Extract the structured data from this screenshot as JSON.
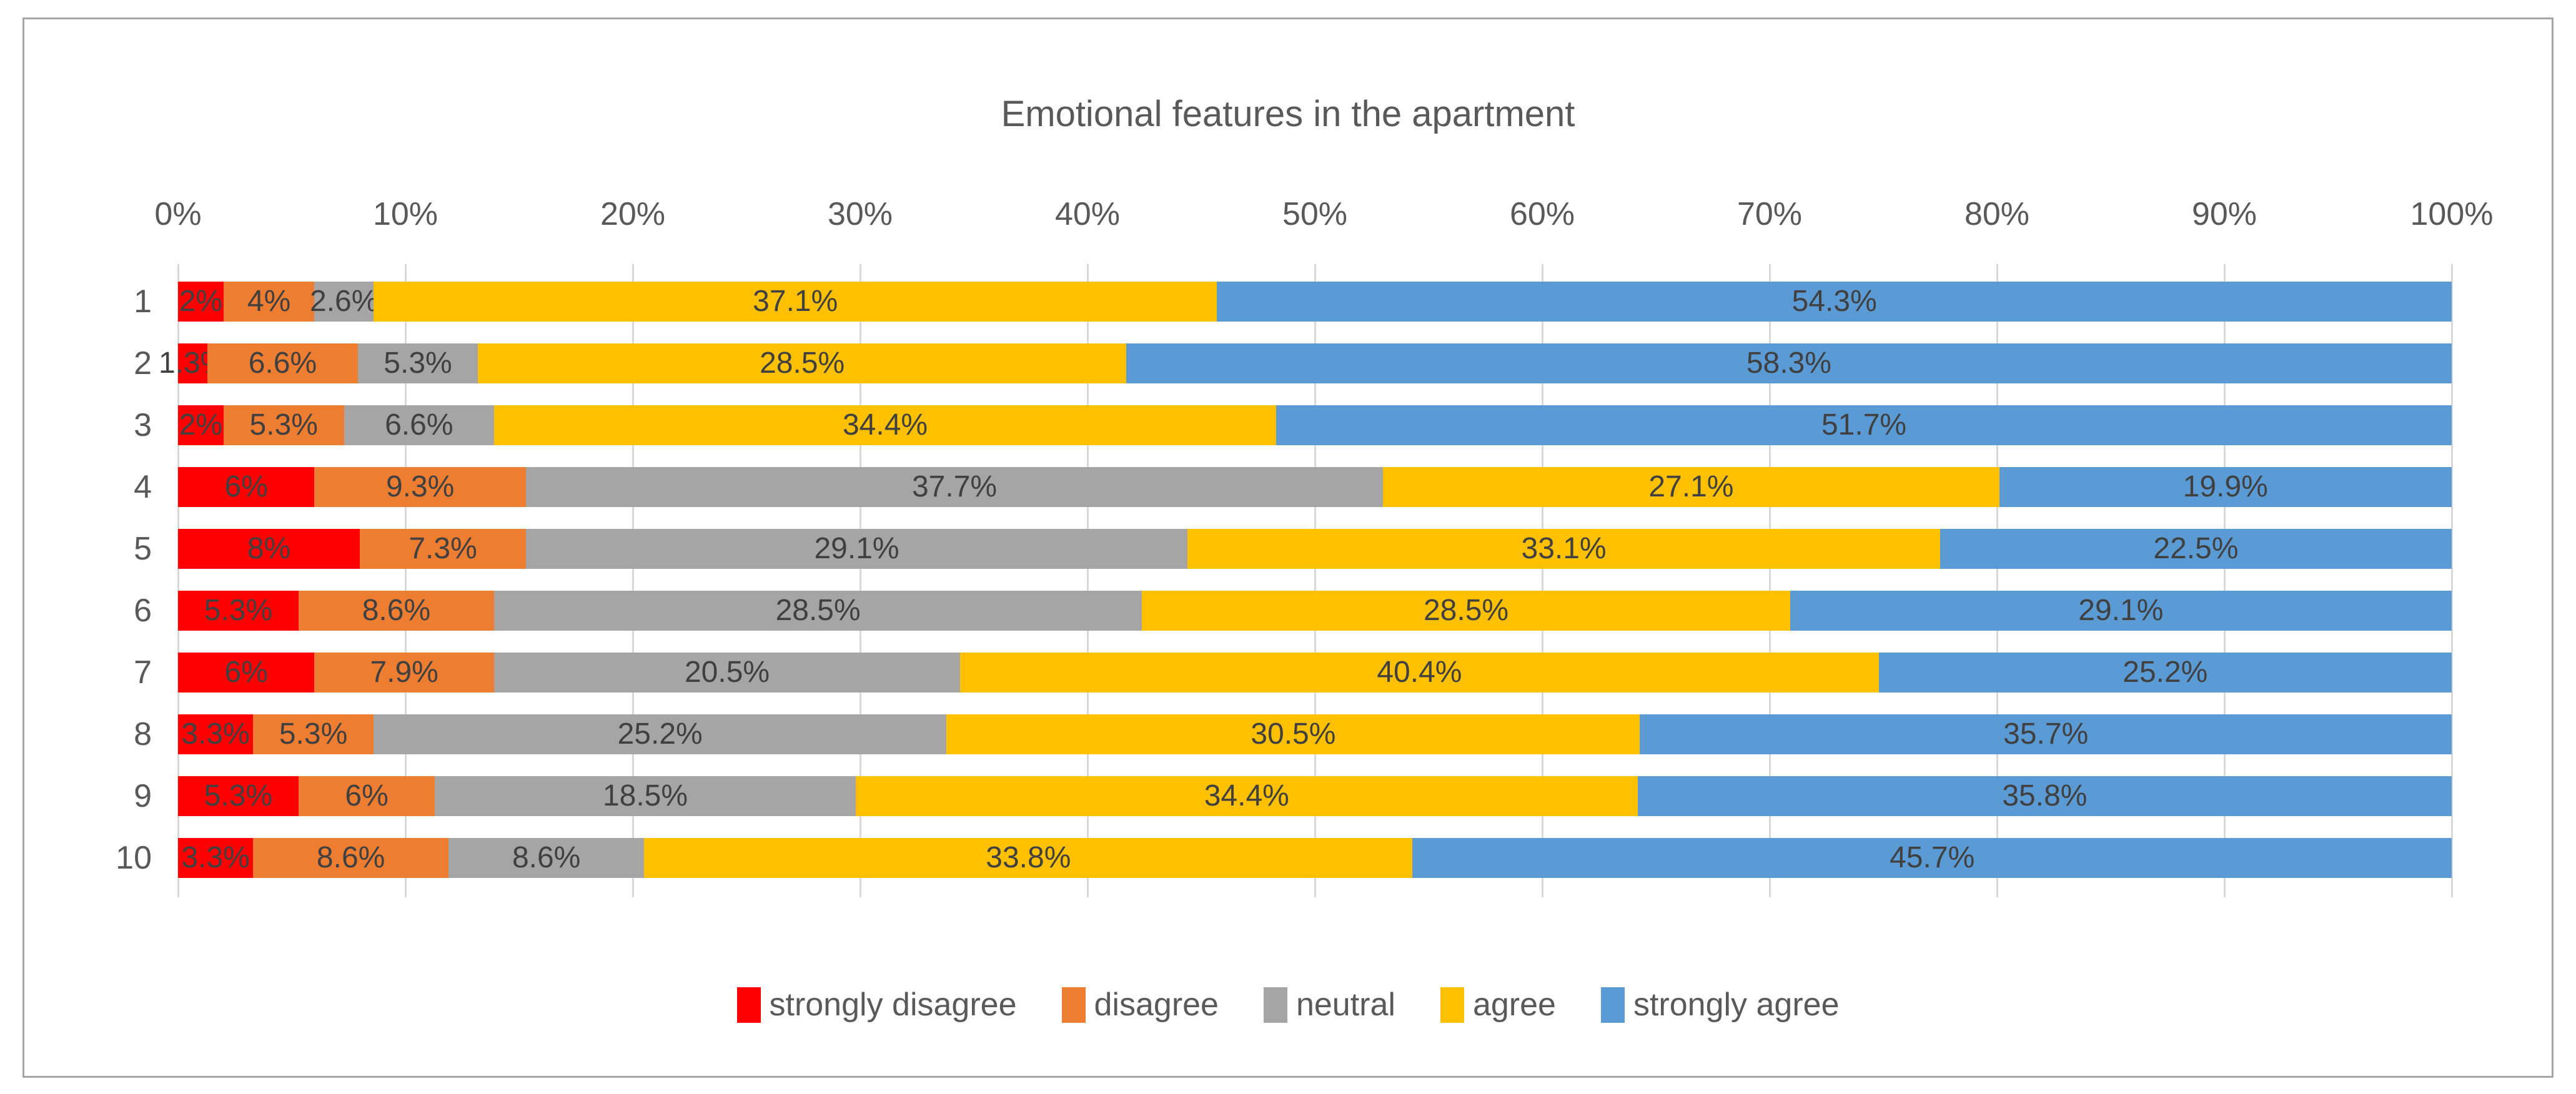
{
  "chart_data": {
    "type": "bar",
    "subtype": "horizontal-stacked-100pct",
    "title": "Emotional features in the apartment",
    "xlabel": "",
    "ylabel": "",
    "xlim": [
      0,
      100
    ],
    "grid": true,
    "legend_position": "bottom",
    "x_ticks": [
      "0%",
      "10%",
      "20%",
      "30%",
      "40%",
      "50%",
      "60%",
      "70%",
      "80%",
      "90%",
      "100%"
    ],
    "categories": [
      "1",
      "2",
      "3",
      "4",
      "5",
      "6",
      "7",
      "8",
      "9",
      "10"
    ],
    "series": [
      {
        "name": "strongly disagree",
        "color": "#FF0000",
        "values": [
          2,
          1.3,
          2,
          6,
          8,
          5.3,
          6,
          3.3,
          5.3,
          3.3
        ],
        "labels": [
          "2%",
          "1.3%",
          "2%",
          "6%",
          "8%",
          "5.3%",
          "6%",
          "3.3%",
          "5.3%",
          "3.3%"
        ]
      },
      {
        "name": "disagree",
        "color": "#ED7D31",
        "values": [
          4,
          6.6,
          5.3,
          9.3,
          7.3,
          8.6,
          7.9,
          5.3,
          6,
          8.6
        ],
        "labels": [
          "4%",
          "6.6%",
          "5.3%",
          "9.3%",
          "7.3%",
          "8.6%",
          "7.9%",
          "5.3%",
          "6%",
          "8.6%"
        ]
      },
      {
        "name": "neutral",
        "color": "#A5A5A5",
        "values": [
          2.6,
          5.3,
          6.6,
          37.7,
          29.1,
          28.5,
          20.5,
          25.2,
          18.5,
          8.6
        ],
        "labels": [
          "2.6%",
          "5.3%",
          "6.6%",
          "37.7%",
          "29.1%",
          "28.5%",
          "20.5%",
          "25.2%",
          "18.5%",
          "8.6%"
        ]
      },
      {
        "name": "agree",
        "color": "#FFC000",
        "values": [
          37.1,
          28.5,
          34.4,
          27.1,
          33.1,
          28.5,
          40.4,
          30.5,
          34.4,
          33.8
        ],
        "labels": [
          "37.1%",
          "28.5%",
          "34.4%",
          "27.1%",
          "33.1%",
          "28.5%",
          "40.4%",
          "30.5%",
          "34.4%",
          "33.8%"
        ]
      },
      {
        "name": "strongly agree",
        "color": "#5B9BD5",
        "values": [
          54.3,
          58.3,
          51.7,
          19.9,
          22.5,
          29.1,
          25.2,
          35.7,
          35.8,
          45.7
        ],
        "labels": [
          "54.3%",
          "58.3%",
          "51.7%",
          "19.9%",
          "22.5%",
          "29.1%",
          "25.2%",
          "35.7%",
          "35.8%",
          "45.7%"
        ]
      }
    ],
    "colors": {
      "gridline": "#D9D9D9",
      "frame_border": "#A6A6A6",
      "axis_text": "#595959",
      "data_label_text": "#404040"
    }
  }
}
